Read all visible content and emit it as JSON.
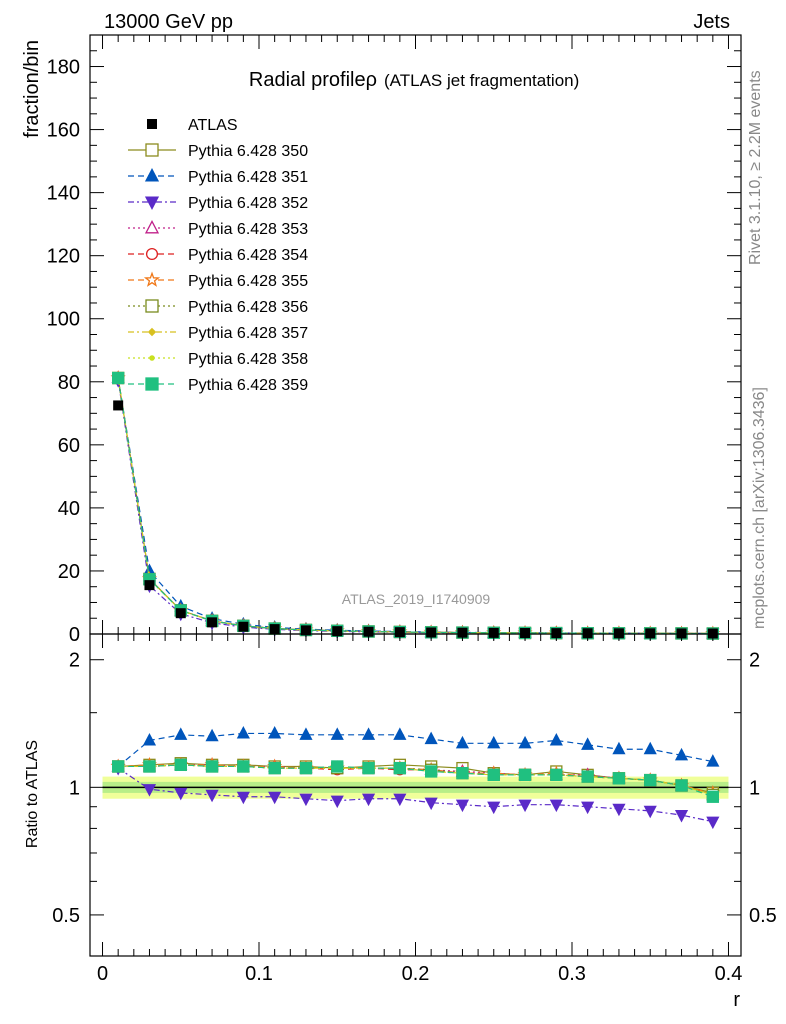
{
  "header": {
    "left": "13000 GeV pp",
    "right": "Jets"
  },
  "side_labels": {
    "rivet": "Rivet 3.1.10, ≥ 2.2M events",
    "mcplots": "mcplots.cern.ch [arXiv:1306.3436]"
  },
  "chart_data": {
    "type": "line",
    "title_main": "Radial profileρ",
    "title_sub": "(ATLAS jet fragmentation)",
    "analysis_label": "ATLAS_2019_I1740909",
    "xlabel": "r",
    "ylabel": "fraction/bin",
    "ratio_ylabel": "Ratio to ATLAS",
    "xlim": [
      -0.008,
      0.408
    ],
    "ylim": [
      0,
      190
    ],
    "ratio_ylim": [
      0.4,
      2.3
    ],
    "ratio_scale": "log",
    "x_ticks": [
      0,
      0.1,
      0.2,
      0.3,
      0.4
    ],
    "x_tick_labels": [
      "0",
      "0.1",
      "0.2",
      "0.3",
      "0.4"
    ],
    "y_ticks": [
      0,
      20,
      40,
      60,
      80,
      100,
      120,
      140,
      160,
      180
    ],
    "y_tick_labels": [
      "0",
      "20",
      "40",
      "60",
      "80",
      "100",
      "120",
      "140",
      "160",
      "180"
    ],
    "ratio_ticks": [
      0.5,
      1,
      2
    ],
    "ratio_tick_labels": [
      "0.5",
      "1",
      "2"
    ],
    "x": [
      0.01,
      0.03,
      0.05,
      0.07,
      0.09,
      0.11,
      0.13,
      0.15,
      0.17,
      0.19,
      0.21,
      0.23,
      0.25,
      0.27,
      0.29,
      0.31,
      0.33,
      0.35,
      0.37,
      0.39
    ],
    "data": {
      "name": "ATLAS",
      "values": [
        72.5,
        15.5,
        6.6,
        3.7,
        2.3,
        1.55,
        1.15,
        0.9,
        0.72,
        0.58,
        0.48,
        0.41,
        0.35,
        0.31,
        0.27,
        0.24,
        0.22,
        0.2,
        0.18,
        0.16
      ],
      "band_inner": 0.03,
      "band_outer": 0.06
    },
    "series": [
      {
        "name": "Pythia 6.428 350",
        "color": "#8c8c1e",
        "marker": "square-open",
        "dash": "",
        "ratio": [
          1.12,
          1.13,
          1.14,
          1.13,
          1.13,
          1.12,
          1.12,
          1.11,
          1.12,
          1.13,
          1.12,
          1.11,
          1.08,
          1.07,
          1.09,
          1.07,
          1.05,
          1.04,
          1.01,
          0.97
        ]
      },
      {
        "name": "Pythia 6.428 351",
        "color": "#0055bb",
        "marker": "triangle-up",
        "dash": "6,4",
        "ratio": [
          1.12,
          1.29,
          1.33,
          1.32,
          1.34,
          1.34,
          1.33,
          1.33,
          1.33,
          1.33,
          1.3,
          1.27,
          1.27,
          1.27,
          1.29,
          1.26,
          1.23,
          1.23,
          1.19,
          1.15
        ]
      },
      {
        "name": "Pythia 6.428 352",
        "color": "#5a2ac8",
        "marker": "triangle-down",
        "dash": "6,3,2,3",
        "ratio": [
          1.11,
          0.99,
          0.97,
          0.96,
          0.95,
          0.95,
          0.94,
          0.93,
          0.94,
          0.94,
          0.92,
          0.91,
          0.9,
          0.91,
          0.91,
          0.9,
          0.89,
          0.88,
          0.86,
          0.83
        ]
      },
      {
        "name": "Pythia 6.428 353",
        "color": "#c0208a",
        "marker": "triangle-open",
        "dash": "2,3",
        "ratio": [
          1.12,
          1.12,
          1.13,
          1.13,
          1.12,
          1.12,
          1.11,
          1.11,
          1.11,
          1.11,
          1.1,
          1.09,
          1.08,
          1.07,
          1.07,
          1.07,
          1.05,
          1.04,
          1.01,
          0.96
        ]
      },
      {
        "name": "Pythia 6.428 354",
        "color": "#dd2020",
        "marker": "circle-open",
        "dash": "6,4",
        "ratio": [
          1.12,
          1.12,
          1.13,
          1.12,
          1.12,
          1.11,
          1.11,
          1.1,
          1.11,
          1.1,
          1.1,
          1.08,
          1.07,
          1.07,
          1.07,
          1.06,
          1.05,
          1.04,
          1.01,
          0.96
        ]
      },
      {
        "name": "Pythia 6.428 355",
        "color": "#f07818",
        "marker": "star-open",
        "dash": "6,4",
        "ratio": [
          1.12,
          1.13,
          1.13,
          1.13,
          1.12,
          1.12,
          1.11,
          1.11,
          1.11,
          1.11,
          1.1,
          1.08,
          1.08,
          1.07,
          1.08,
          1.06,
          1.05,
          1.04,
          1.01,
          0.97
        ]
      },
      {
        "name": "Pythia 6.428 356",
        "color": "#7a8c1e",
        "marker": "square-open",
        "dash": "2,3",
        "ratio": [
          1.12,
          1.12,
          1.13,
          1.12,
          1.12,
          1.11,
          1.11,
          1.11,
          1.11,
          1.11,
          1.1,
          1.08,
          1.07,
          1.07,
          1.07,
          1.06,
          1.05,
          1.04,
          1.01,
          0.96
        ]
      },
      {
        "name": "Pythia 6.428 357",
        "color": "#d8c020",
        "marker": "diamond-small",
        "dash": "6,3,2,3",
        "ratio": [
          1.12,
          1.12,
          1.13,
          1.12,
          1.12,
          1.11,
          1.11,
          1.11,
          1.11,
          1.11,
          1.09,
          1.08,
          1.07,
          1.07,
          1.07,
          1.06,
          1.05,
          1.04,
          1.01,
          0.96
        ]
      },
      {
        "name": "Pythia 6.428 358",
        "color": "#c8e020",
        "marker": "dot",
        "dash": "2,3",
        "ratio": [
          1.12,
          1.12,
          1.13,
          1.12,
          1.12,
          1.11,
          1.11,
          1.11,
          1.11,
          1.11,
          1.09,
          1.08,
          1.07,
          1.07,
          1.07,
          1.06,
          1.05,
          1.04,
          1.01,
          0.96
        ]
      },
      {
        "name": "Pythia 6.428 359",
        "color": "#20c080",
        "marker": "square-filled",
        "dash": "6,4",
        "ratio": [
          1.12,
          1.12,
          1.13,
          1.12,
          1.12,
          1.11,
          1.11,
          1.12,
          1.11,
          1.11,
          1.09,
          1.08,
          1.07,
          1.07,
          1.07,
          1.06,
          1.05,
          1.04,
          1.01,
          0.95
        ]
      }
    ]
  }
}
